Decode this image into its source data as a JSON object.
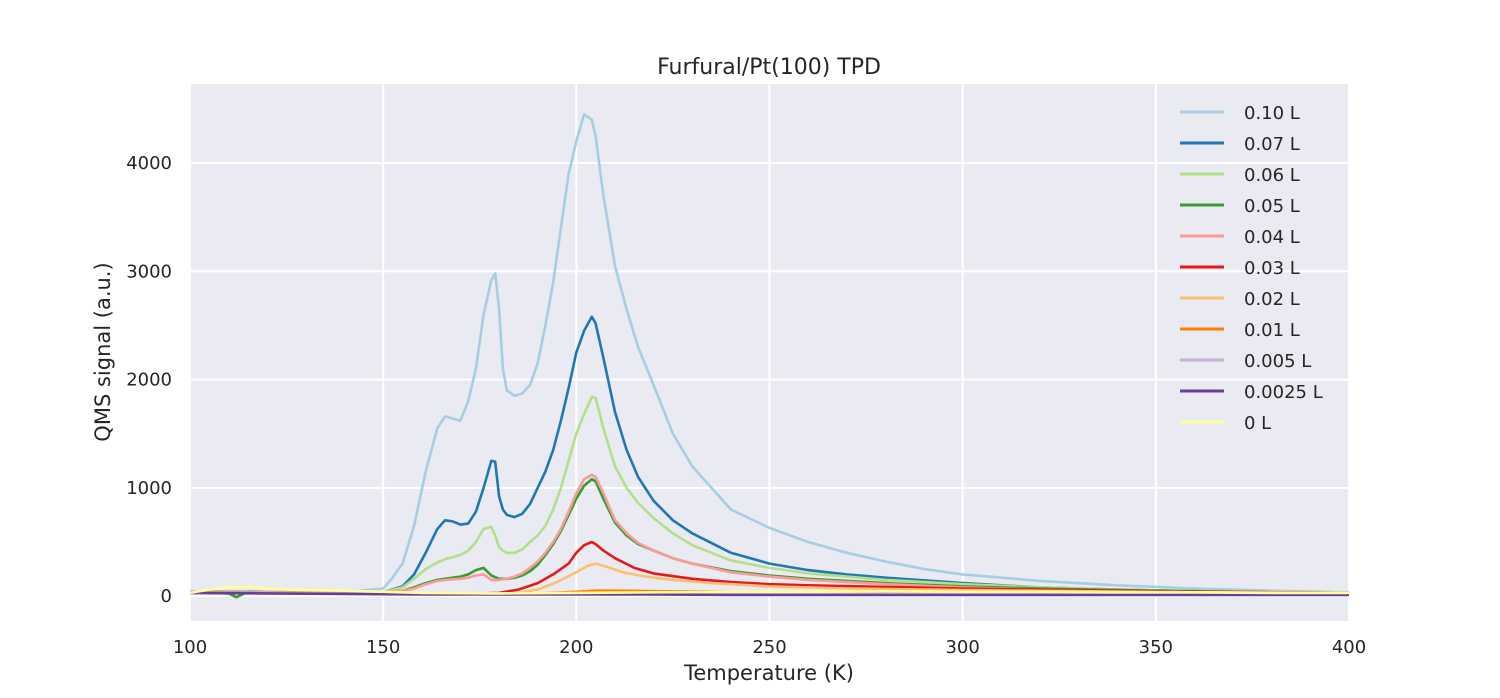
{
  "chart_data": {
    "type": "line",
    "title": "Furfural/Pt(100) TPD",
    "xlabel": "Temperature (K)",
    "ylabel": "QMS signal (a.u.)",
    "xlim": [
      100,
      400
    ],
    "ylim": [
      -230,
      4730
    ],
    "xticks": [
      100,
      150,
      200,
      250,
      300,
      350,
      400
    ],
    "yticks": [
      0,
      1000,
      2000,
      3000,
      4000
    ],
    "grid": true,
    "legend_position": "top-right",
    "series": [
      {
        "name": "0.10 L",
        "color": "#a6cee3",
        "x": [
          100,
          110,
          120,
          130,
          140,
          150,
          152,
          155,
          158,
          161,
          164,
          166,
          168,
          170,
          172,
          174,
          176,
          178,
          179,
          180,
          181,
          182,
          184,
          186,
          188,
          190,
          192,
          194,
          196,
          198,
          200,
          202,
          204,
          205,
          207,
          210,
          213,
          216,
          220,
          225,
          230,
          240,
          250,
          260,
          270,
          280,
          290,
          300,
          320,
          340,
          360,
          380,
          400
        ],
        "y": [
          40,
          45,
          40,
          40,
          35,
          70,
          150,
          300,
          650,
          1150,
          1550,
          1660,
          1640,
          1620,
          1800,
          2100,
          2600,
          2920,
          2980,
          2650,
          2100,
          1900,
          1850,
          1870,
          1950,
          2150,
          2500,
          2900,
          3400,
          3900,
          4200,
          4450,
          4400,
          4250,
          3700,
          3050,
          2650,
          2300,
          1950,
          1500,
          1200,
          800,
          630,
          500,
          400,
          320,
          250,
          200,
          140,
          100,
          70,
          50,
          35
        ]
      },
      {
        "name": "0.07 L",
        "color": "#1f78b4",
        "x": [
          100,
          120,
          140,
          150,
          155,
          158,
          161,
          164,
          166,
          168,
          170,
          172,
          174,
          176,
          178,
          179,
          180,
          181,
          182,
          184,
          186,
          188,
          190,
          192,
          194,
          196,
          198,
          200,
          202,
          204,
          205,
          207,
          210,
          213,
          216,
          220,
          225,
          230,
          240,
          250,
          260,
          270,
          280,
          300,
          320,
          340,
          360,
          380,
          400
        ],
        "y": [
          40,
          35,
          30,
          35,
          90,
          200,
          400,
          620,
          700,
          690,
          660,
          670,
          780,
          1000,
          1250,
          1240,
          920,
          800,
          750,
          730,
          760,
          850,
          1000,
          1150,
          1350,
          1620,
          1920,
          2250,
          2450,
          2580,
          2520,
          2200,
          1700,
          1350,
          1100,
          880,
          700,
          580,
          400,
          300,
          240,
          200,
          170,
          120,
          80,
          60,
          45,
          35,
          30
        ]
      },
      {
        "name": "0.06 L",
        "color": "#b2df8a",
        "x": [
          100,
          120,
          140,
          150,
          155,
          158,
          161,
          164,
          166,
          168,
          170,
          172,
          174,
          176,
          178,
          179,
          180,
          181,
          182,
          184,
          186,
          188,
          190,
          192,
          194,
          196,
          198,
          200,
          202,
          204,
          205,
          207,
          210,
          213,
          216,
          220,
          225,
          230,
          240,
          250,
          260,
          270,
          280,
          300,
          320,
          340,
          360,
          380,
          400
        ],
        "y": [
          40,
          35,
          30,
          35,
          80,
          160,
          250,
          310,
          340,
          360,
          380,
          420,
          500,
          620,
          640,
          560,
          450,
          420,
          400,
          400,
          430,
          500,
          560,
          650,
          800,
          1000,
          1250,
          1500,
          1680,
          1840,
          1830,
          1550,
          1200,
          1000,
          860,
          720,
          580,
          470,
          330,
          260,
          210,
          180,
          150,
          110,
          80,
          60,
          45,
          35,
          30
        ]
      },
      {
        "name": "0.05 L",
        "color": "#33a02c",
        "x": [
          100,
          105,
          110,
          112,
          115,
          120,
          130,
          140,
          150,
          155,
          158,
          161,
          164,
          166,
          168,
          170,
          172,
          174,
          176,
          178,
          180,
          182,
          184,
          186,
          188,
          190,
          192,
          194,
          196,
          198,
          200,
          202,
          204,
          205,
          207,
          210,
          213,
          216,
          220,
          225,
          230,
          240,
          250,
          260,
          270,
          280,
          300,
          320,
          340,
          360,
          380,
          400
        ],
        "y": [
          40,
          30,
          25,
          -10,
          40,
          35,
          30,
          30,
          35,
          50,
          80,
          120,
          150,
          160,
          170,
          180,
          200,
          240,
          260,
          190,
          160,
          160,
          170,
          190,
          230,
          290,
          380,
          480,
          600,
          750,
          900,
          1020,
          1080,
          1060,
          900,
          680,
          560,
          480,
          420,
          350,
          300,
          230,
          190,
          160,
          140,
          120,
          90,
          70,
          55,
          45,
          35,
          30
        ]
      },
      {
        "name": "0.04 L",
        "color": "#fb9a99",
        "x": [
          100,
          120,
          140,
          150,
          155,
          158,
          161,
          164,
          166,
          168,
          170,
          172,
          174,
          176,
          178,
          180,
          182,
          184,
          186,
          188,
          190,
          192,
          194,
          196,
          198,
          200,
          202,
          204,
          205,
          207,
          210,
          213,
          216,
          220,
          225,
          230,
          240,
          250,
          260,
          270,
          280,
          300,
          320,
          340,
          360,
          380,
          400
        ],
        "y": [
          40,
          35,
          30,
          35,
          50,
          70,
          110,
          140,
          150,
          155,
          160,
          170,
          190,
          200,
          150,
          150,
          160,
          180,
          210,
          260,
          320,
          400,
          500,
          620,
          780,
          950,
          1080,
          1120,
          1100,
          950,
          700,
          580,
          490,
          420,
          350,
          300,
          220,
          180,
          150,
          130,
          110,
          80,
          60,
          50,
          40,
          35,
          30
        ]
      },
      {
        "name": "0.03 L",
        "color": "#e31a1c",
        "x": [
          100,
          120,
          140,
          160,
          170,
          175,
          180,
          185,
          190,
          194,
          198,
          200,
          202,
          204,
          205,
          207,
          210,
          215,
          220,
          230,
          240,
          250,
          260,
          280,
          300,
          320,
          340,
          360,
          380,
          400
        ],
        "y": [
          40,
          30,
          25,
          20,
          20,
          25,
          30,
          60,
          120,
          200,
          300,
          400,
          470,
          500,
          480,
          420,
          350,
          260,
          210,
          160,
          130,
          110,
          100,
          85,
          70,
          60,
          50,
          40,
          35,
          30
        ]
      },
      {
        "name": "0.02 L",
        "color": "#fdbf6f",
        "x": [
          100,
          120,
          140,
          160,
          180,
          185,
          190,
          195,
          200,
          203,
          205,
          208,
          212,
          218,
          225,
          235,
          250,
          270,
          300,
          330,
          360,
          400
        ],
        "y": [
          40,
          30,
          25,
          20,
          20,
          30,
          60,
          130,
          220,
          280,
          300,
          270,
          220,
          180,
          150,
          120,
          90,
          70,
          55,
          45,
          35,
          30
        ]
      },
      {
        "name": "0.01 L",
        "color": "#ff7f00",
        "x": [
          100,
          120,
          140,
          160,
          180,
          190,
          200,
          205,
          210,
          220,
          240,
          260,
          300,
          340,
          400
        ],
        "y": [
          40,
          30,
          25,
          20,
          20,
          25,
          40,
          50,
          50,
          45,
          40,
          35,
          30,
          25,
          20
        ]
      },
      {
        "name": "0.005 L",
        "color": "#cab2d6",
        "x": [
          100,
          120,
          140,
          160,
          180,
          200,
          220,
          240,
          260,
          300,
          340,
          400
        ],
        "y": [
          35,
          30,
          25,
          20,
          20,
          25,
          25,
          25,
          20,
          20,
          15,
          15
        ]
      },
      {
        "name": "0.0025 L",
        "color": "#6a3d9a",
        "x": [
          100,
          120,
          140,
          160,
          180,
          200,
          220,
          240,
          260,
          300,
          340,
          400
        ],
        "y": [
          30,
          25,
          20,
          15,
          15,
          15,
          15,
          10,
          10,
          10,
          10,
          10
        ]
      },
      {
        "name": "0 L",
        "color": "#ffff99",
        "x": [
          100,
          105,
          110,
          115,
          120,
          125,
          130,
          140,
          150,
          160,
          180,
          200,
          220,
          240,
          260,
          280,
          300,
          320,
          340,
          360,
          380,
          400
        ],
        "y": [
          30,
          60,
          80,
          90,
          70,
          60,
          55,
          50,
          40,
          30,
          25,
          30,
          35,
          40,
          40,
          45,
          40,
          40,
          35,
          35,
          30,
          30
        ]
      }
    ]
  }
}
